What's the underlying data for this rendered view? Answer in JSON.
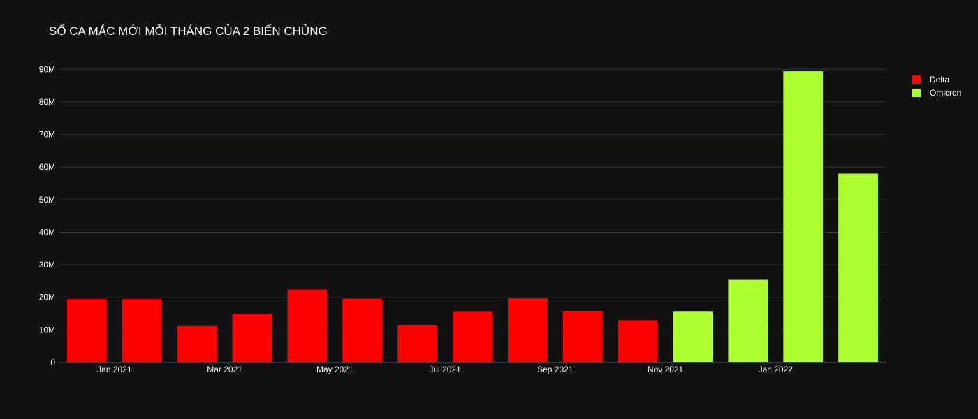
{
  "chart_data": {
    "type": "bar",
    "title": "SỐ CA MẮC MỚI MỖI THÁNG CỦA 2 BIẾN CHỦNG",
    "xlabel": "",
    "ylabel": "",
    "ylim": [
      0,
      95000000
    ],
    "yticks": [
      0,
      10000000,
      20000000,
      30000000,
      40000000,
      50000000,
      60000000,
      70000000,
      80000000,
      90000000
    ],
    "ytick_labels": [
      "0",
      "10M",
      "20M",
      "30M",
      "40M",
      "50M",
      "60M",
      "70M",
      "80M",
      "90M"
    ],
    "xtick_labels": [
      "Jan 2021",
      "Mar 2021",
      "May 2021",
      "Jul 2021",
      "Sep 2021",
      "Nov 2021",
      "Jan 2022"
    ],
    "xtick_months": [
      "2021-01",
      "2021-03",
      "2021-05",
      "2021-07",
      "2021-09",
      "2021-11",
      "2022-01"
    ],
    "grid": true,
    "legend_position": "top-right",
    "series": [
      {
        "name": "Delta",
        "color": "#ff0000",
        "months": [
          "2020-12",
          "2021-01",
          "2021-02",
          "2021-03",
          "2021-04",
          "2021-05",
          "2021-06",
          "2021-07",
          "2021-08",
          "2021-09",
          "2021-10"
        ],
        "values": [
          19500000,
          19500000,
          11200000,
          14800000,
          22400000,
          19600000,
          11400000,
          15600000,
          19700000,
          15800000,
          13000000
        ]
      },
      {
        "name": "Omicron",
        "color": "#adff2f",
        "months": [
          "2021-11",
          "2021-12",
          "2022-01",
          "2022-02"
        ],
        "values": [
          15600000,
          25400000,
          89400000,
          58000000
        ]
      }
    ]
  }
}
